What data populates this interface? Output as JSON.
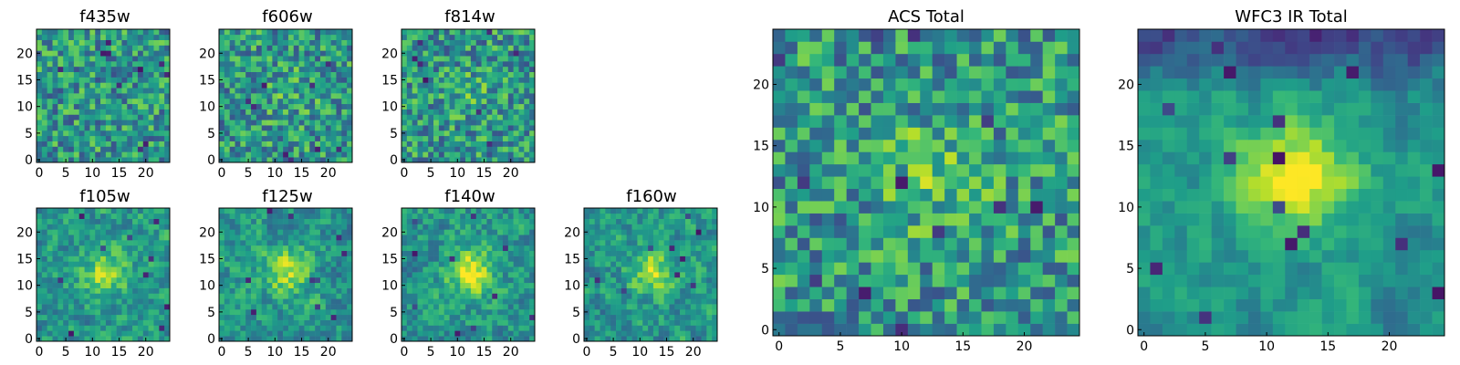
{
  "figure": {
    "description_free": true
  },
  "chart_data": [
    {
      "type": "heatmap",
      "title": "f435w",
      "seed": 11,
      "smooth": 0,
      "peak": 0.0,
      "holes": 10,
      "hole_depth": 0.9,
      "xticks": [
        0,
        5,
        10,
        15,
        20
      ],
      "yticks": [
        0,
        5,
        10,
        15,
        20
      ],
      "xlim": [
        0,
        25
      ],
      "ylim": [
        0,
        25
      ],
      "grid": 25,
      "colormap": "viridis"
    },
    {
      "type": "heatmap",
      "title": "f606w",
      "seed": 23,
      "smooth": 0,
      "peak": 0.1,
      "holes": 9,
      "hole_depth": 0.9,
      "xticks": [
        0,
        5,
        10,
        15,
        20
      ],
      "yticks": [
        0,
        5,
        10,
        15,
        20
      ],
      "xlim": [
        0,
        25
      ],
      "ylim": [
        0,
        25
      ],
      "grid": 25,
      "colormap": "viridis"
    },
    {
      "type": "heatmap",
      "title": "f814w",
      "seed": 37,
      "smooth": 0,
      "peak": 0.1,
      "holes": 8,
      "hole_depth": 0.9,
      "xticks": [
        0,
        5,
        10,
        15,
        20
      ],
      "yticks": [
        0,
        5,
        10,
        15,
        20
      ],
      "xlim": [
        0,
        25
      ],
      "ylim": [
        0,
        25
      ],
      "grid": 25,
      "colormap": "viridis"
    },
    {
      "type": "heatmap",
      "title": "f105w",
      "seed": 41,
      "smooth": 1,
      "peak": 0.35,
      "holes": 10,
      "hole_depth": 0.8,
      "xticks": [
        0,
        5,
        10,
        15,
        20
      ],
      "yticks": [
        0,
        5,
        10,
        15,
        20
      ],
      "xlim": [
        0,
        25
      ],
      "ylim": [
        0,
        25
      ],
      "grid": 25,
      "colormap": "viridis"
    },
    {
      "type": "heatmap",
      "title": "f125w",
      "seed": 53,
      "smooth": 1,
      "peak": 0.35,
      "holes": 10,
      "hole_depth": 0.8,
      "xticks": [
        0,
        5,
        10,
        15,
        20
      ],
      "yticks": [
        0,
        5,
        10,
        15,
        20
      ],
      "xlim": [
        0,
        25
      ],
      "ylim": [
        0,
        25
      ],
      "grid": 25,
      "colormap": "viridis"
    },
    {
      "type": "heatmap",
      "title": "f140w",
      "seed": 67,
      "smooth": 1,
      "peak": 0.45,
      "holes": 10,
      "hole_depth": 0.8,
      "xticks": [
        0,
        5,
        10,
        15,
        20
      ],
      "yticks": [
        0,
        5,
        10,
        15,
        20
      ],
      "xlim": [
        0,
        25
      ],
      "ylim": [
        0,
        25
      ],
      "grid": 25,
      "colormap": "viridis"
    },
    {
      "type": "heatmap",
      "title": "f160w",
      "seed": 79,
      "smooth": 1,
      "peak": 0.35,
      "holes": 9,
      "hole_depth": 0.8,
      "xticks": [
        0,
        5,
        10,
        15,
        20
      ],
      "yticks": [
        0,
        5,
        10,
        15,
        20
      ],
      "xlim": [
        0,
        25
      ],
      "ylim": [
        0,
        25
      ],
      "grid": 25,
      "colormap": "viridis"
    },
    {
      "type": "heatmap",
      "title": "ACS Total",
      "seed": 97,
      "smooth": 0,
      "peak": 0.2,
      "holes": 12,
      "hole_depth": 0.85,
      "xticks": [
        0,
        5,
        10,
        15,
        20
      ],
      "yticks": [
        0,
        5,
        10,
        15,
        20
      ],
      "xlim": [
        0,
        25
      ],
      "ylim": [
        0,
        25
      ],
      "grid": 25,
      "colormap": "viridis"
    },
    {
      "type": "heatmap",
      "title": "WFC3 IR Total",
      "seed": 131,
      "smooth": 2,
      "peak": 0.55,
      "holes": 16,
      "hole_depth": 0.8,
      "top_dark": true,
      "xticks": [
        0,
        5,
        10,
        15,
        20
      ],
      "yticks": [
        0,
        5,
        10,
        15,
        20
      ],
      "xlim": [
        0,
        25
      ],
      "ylim": [
        0,
        25
      ],
      "grid": 25,
      "colormap": "viridis"
    }
  ]
}
